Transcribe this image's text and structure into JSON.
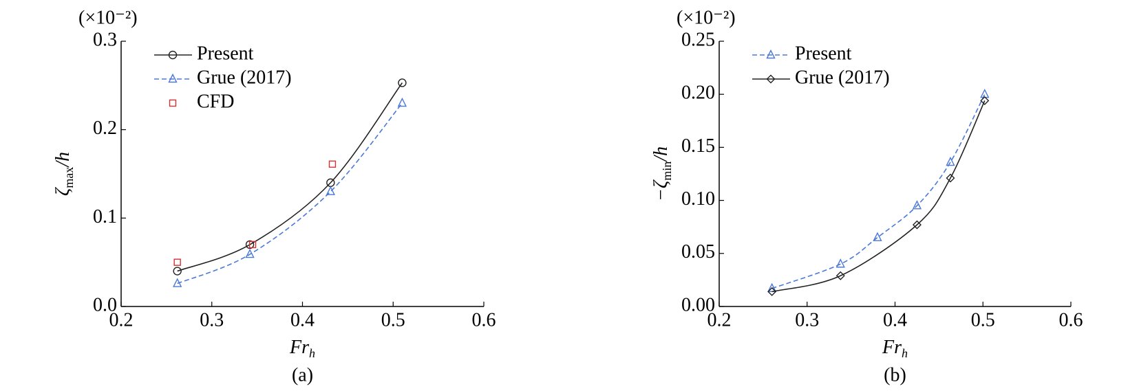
{
  "chart_data": [
    {
      "type": "line",
      "caption": "(a)",
      "multiplier": "(×10⁻²)",
      "x_label": "Fr",
      "x_label_sub": "h",
      "y_label": "ζ",
      "y_label_sub": "max",
      "y_label_tail": "/h",
      "xlim": [
        0.2,
        0.6
      ],
      "xticks": [
        0.2,
        0.3,
        0.4,
        0.5,
        0.6
      ],
      "ylim": [
        0,
        0.3
      ],
      "yticks": [
        {
          "value": 0,
          "label": "0.0"
        },
        0.1,
        0.2,
        0.3
      ],
      "legend": "upper left",
      "series": [
        {
          "name": "Present",
          "color": "#222222",
          "marker": "circle",
          "line": "solid",
          "x": [
            0.262,
            0.342,
            0.431,
            0.51
          ],
          "values": [
            0.04,
            0.07,
            0.14,
            0.253
          ]
        },
        {
          "name": "Grue (2017)",
          "color": "#4a78d8",
          "marker": "triangle",
          "line": "dashed",
          "x": [
            0.262,
            0.342,
            0.431,
            0.51
          ],
          "values": [
            0.026,
            0.059,
            0.13,
            0.23
          ]
        },
        {
          "name": "CFD",
          "color": "#d83030",
          "marker": "square",
          "line": "none",
          "x": [
            0.262,
            0.345,
            0.433
          ],
          "values": [
            0.05,
            0.07,
            0.161
          ]
        }
      ]
    },
    {
      "type": "line",
      "caption": "(b)",
      "multiplier": "(×10⁻²)",
      "x_label": "Fr",
      "x_label_sub": "h",
      "y_label": "−ζ",
      "y_label_sub": "min",
      "y_label_tail": "/h",
      "xlim": [
        0.2,
        0.6
      ],
      "xticks": [
        0.2,
        0.3,
        0.4,
        0.5,
        0.6
      ],
      "ylim": [
        0,
        0.25
      ],
      "yticks": [
        {
          "value": 0,
          "label": "0.00"
        },
        {
          "value": 0.05,
          "label": "0.05"
        },
        {
          "value": 0.1,
          "label": "0.10"
        },
        {
          "value": 0.15,
          "label": "0.15"
        },
        {
          "value": 0.2,
          "label": "0.20"
        },
        {
          "value": 0.25,
          "label": "0.25"
        }
      ],
      "legend": "upper left",
      "series": [
        {
          "name": "Present",
          "color": "#4a78d8",
          "marker": "triangle",
          "line": "dashed",
          "x": [
            0.26,
            0.338,
            0.38,
            0.425,
            0.463,
            0.502
          ],
          "values": [
            0.017,
            0.04,
            0.065,
            0.095,
            0.136,
            0.2
          ]
        },
        {
          "name": "Grue (2017)",
          "color": "#222222",
          "marker": "diamond",
          "line": "solid",
          "x": [
            0.26,
            0.338,
            0.425,
            0.463,
            0.502
          ],
          "values": [
            0.014,
            0.029,
            0.077,
            0.121,
            0.194
          ]
        }
      ]
    }
  ]
}
